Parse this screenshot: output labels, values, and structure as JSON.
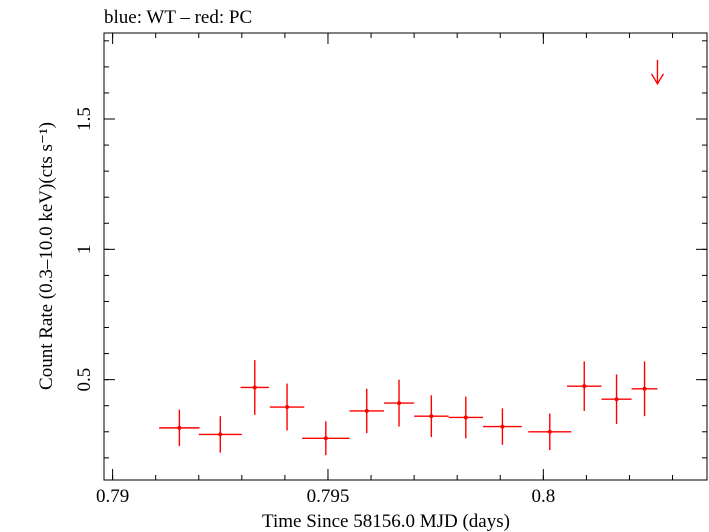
{
  "chart_data": {
    "type": "scatter",
    "title": "blue: WT – red: PC",
    "xlabel": "Time Since 58156.0 MJD (days)",
    "ylabel": "Count Rate (0.3–10.0 keV)(cts s⁻¹)",
    "xlim": [
      0.7898,
      0.8038
    ],
    "ylim": [
      0.115,
      1.83
    ],
    "x_ticks": [
      {
        "value": 0.79,
        "label": "0.79"
      },
      {
        "value": 0.795,
        "label": "0.795"
      },
      {
        "value": 0.8,
        "label": "0.8"
      }
    ],
    "y_ticks": [
      {
        "value": 0.5,
        "label": "0.5"
      },
      {
        "value": 1.0,
        "label": "1"
      },
      {
        "value": 1.5,
        "label": "1.5"
      }
    ],
    "x_minor_step": 0.001,
    "y_minor_step": 0.1,
    "grid": false,
    "series": [
      {
        "color": "#ff0000",
        "points": [
          {
            "x": 0.79155,
            "xerr": 0.00047,
            "y": 0.315,
            "yerr": 0.07
          },
          {
            "x": 0.7925,
            "xerr": 0.0005,
            "y": 0.29,
            "yerr": 0.07
          },
          {
            "x": 0.7933,
            "xerr": 0.00033,
            "y": 0.47,
            "yerr": 0.105
          },
          {
            "x": 0.79405,
            "xerr": 0.0004,
            "y": 0.395,
            "yerr": 0.09
          },
          {
            "x": 0.79495,
            "xerr": 0.00055,
            "y": 0.275,
            "yerr": 0.065
          },
          {
            "x": 0.7959,
            "xerr": 0.0004,
            "y": 0.38,
            "yerr": 0.085
          },
          {
            "x": 0.79665,
            "xerr": 0.00035,
            "y": 0.41,
            "yerr": 0.09
          },
          {
            "x": 0.7974,
            "xerr": 0.0004,
            "y": 0.36,
            "yerr": 0.08
          },
          {
            "x": 0.7982,
            "xerr": 0.0004,
            "y": 0.355,
            "yerr": 0.08
          },
          {
            "x": 0.79905,
            "xerr": 0.00045,
            "y": 0.32,
            "yerr": 0.07
          },
          {
            "x": 0.80015,
            "xerr": 0.0005,
            "y": 0.3,
            "yerr": 0.07
          },
          {
            "x": 0.80095,
            "xerr": 0.0004,
            "y": 0.475,
            "yerr": 0.095
          },
          {
            "x": 0.8017,
            "xerr": 0.00035,
            "y": 0.425,
            "yerr": 0.095
          },
          {
            "x": 0.80235,
            "xerr": 0.0003,
            "y": 0.465,
            "yerr": 0.105
          }
        ],
        "upper_limits": [
          {
            "x": 0.80265,
            "y": 1.635
          }
        ]
      }
    ]
  }
}
